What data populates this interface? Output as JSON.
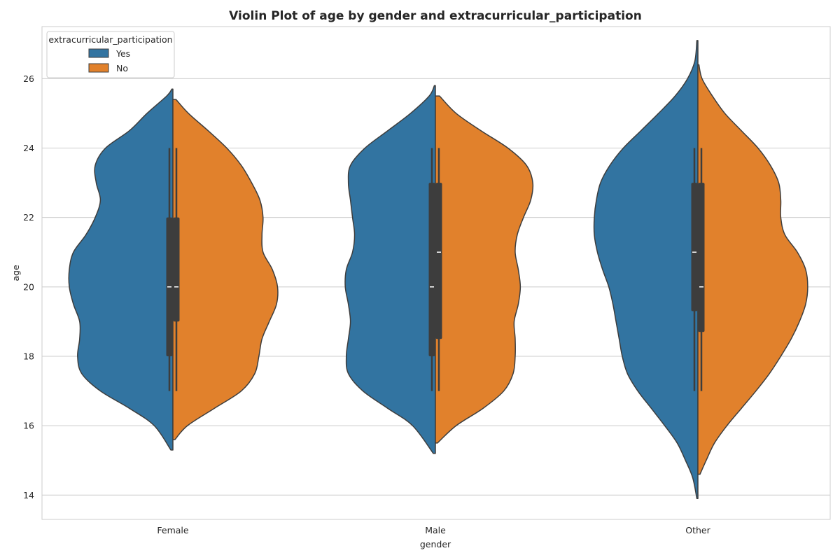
{
  "chart_data": {
    "type": "violin",
    "title": "Violin Plot of age by gender and extracurricular_participation",
    "xlabel": "gender",
    "ylabel": "age",
    "ylim": [
      13.3,
      27.5
    ],
    "yticks": [
      14,
      16,
      18,
      20,
      22,
      24,
      26
    ],
    "categories": [
      "Female",
      "Male",
      "Other"
    ],
    "grid": "horizontal",
    "split": true,
    "legend": {
      "title": "extracurricular_participation",
      "placement": "top-left",
      "entries": [
        {
          "label": "Yes",
          "color": "#3274a1"
        },
        {
          "label": "No",
          "color": "#e1812c"
        }
      ]
    },
    "series": [
      {
        "name": "Yes",
        "color": "#3274a1",
        "groups": [
          {
            "category": "Female",
            "min": 15.3,
            "max": 25.7,
            "whisker": [
              17,
              24
            ],
            "q1": 18,
            "median": 20,
            "q3": 22,
            "density": [
              [
                15.3,
                0.02
              ],
              [
                16.0,
                0.18
              ],
              [
                16.5,
                0.42
              ],
              [
                17.0,
                0.7
              ],
              [
                17.5,
                0.88
              ],
              [
                18.0,
                0.92
              ],
              [
                18.5,
                0.9
              ],
              [
                19.0,
                0.9
              ],
              [
                19.5,
                0.96
              ],
              [
                20.0,
                1.0
              ],
              [
                20.5,
                1.0
              ],
              [
                21.0,
                0.96
              ],
              [
                21.5,
                0.84
              ],
              [
                22.0,
                0.75
              ],
              [
                22.5,
                0.7
              ],
              [
                23.0,
                0.74
              ],
              [
                23.5,
                0.75
              ],
              [
                24.0,
                0.65
              ],
              [
                24.5,
                0.42
              ],
              [
                25.0,
                0.25
              ],
              [
                25.5,
                0.06
              ],
              [
                25.7,
                0.01
              ]
            ]
          },
          {
            "category": "Male",
            "min": 15.2,
            "max": 25.8,
            "whisker": [
              17,
              24
            ],
            "q1": 18,
            "median": 20,
            "q3": 23,
            "density": [
              [
                15.2,
                0.02
              ],
              [
                16.0,
                0.22
              ],
              [
                16.5,
                0.46
              ],
              [
                17.0,
                0.7
              ],
              [
                17.5,
                0.84
              ],
              [
                18.0,
                0.86
              ],
              [
                18.5,
                0.84
              ],
              [
                19.0,
                0.82
              ],
              [
                19.5,
                0.84
              ],
              [
                20.0,
                0.87
              ],
              [
                20.5,
                0.86
              ],
              [
                21.0,
                0.8
              ],
              [
                21.5,
                0.78
              ],
              [
                22.0,
                0.8
              ],
              [
                22.5,
                0.82
              ],
              [
                23.0,
                0.84
              ],
              [
                23.5,
                0.82
              ],
              [
                24.0,
                0.68
              ],
              [
                24.5,
                0.46
              ],
              [
                25.0,
                0.24
              ],
              [
                25.5,
                0.06
              ],
              [
                25.8,
                0.01
              ]
            ]
          },
          {
            "category": "Other",
            "min": 13.9,
            "max": 27.1,
            "whisker": [
              17,
              24
            ],
            "q1": 19.3,
            "median": 21,
            "q3": 23,
            "density": [
              [
                13.9,
                0.01
              ],
              [
                14.5,
                0.05
              ],
              [
                15.0,
                0.12
              ],
              [
                15.5,
                0.2
              ],
              [
                16.0,
                0.32
              ],
              [
                16.5,
                0.45
              ],
              [
                17.0,
                0.58
              ],
              [
                17.5,
                0.68
              ],
              [
                18.0,
                0.73
              ],
              [
                18.5,
                0.76
              ],
              [
                19.0,
                0.79
              ],
              [
                19.5,
                0.82
              ],
              [
                20.0,
                0.86
              ],
              [
                20.5,
                0.92
              ],
              [
                21.0,
                0.97
              ],
              [
                21.5,
                1.0
              ],
              [
                22.0,
                1.0
              ],
              [
                22.5,
                0.98
              ],
              [
                23.0,
                0.94
              ],
              [
                23.5,
                0.85
              ],
              [
                24.0,
                0.72
              ],
              [
                24.5,
                0.55
              ],
              [
                25.0,
                0.38
              ],
              [
                25.5,
                0.22
              ],
              [
                26.0,
                0.1
              ],
              [
                26.5,
                0.03
              ],
              [
                27.1,
                0.01
              ]
            ]
          }
        ]
      },
      {
        "name": "No",
        "color": "#e1812c",
        "groups": [
          {
            "category": "Female",
            "min": 15.6,
            "max": 25.4,
            "whisker": [
              17,
              24
            ],
            "q1": 19,
            "median": 20,
            "q3": 22,
            "density": [
              [
                15.6,
                0.02
              ],
              [
                16.0,
                0.14
              ],
              [
                16.5,
                0.4
              ],
              [
                17.0,
                0.66
              ],
              [
                17.5,
                0.79
              ],
              [
                18.0,
                0.83
              ],
              [
                18.5,
                0.86
              ],
              [
                19.0,
                0.93
              ],
              [
                19.5,
                1.0
              ],
              [
                20.0,
                1.01
              ],
              [
                20.5,
                0.96
              ],
              [
                21.0,
                0.87
              ],
              [
                21.5,
                0.86
              ],
              [
                22.0,
                0.87
              ],
              [
                22.5,
                0.84
              ],
              [
                23.0,
                0.76
              ],
              [
                23.5,
                0.66
              ],
              [
                24.0,
                0.52
              ],
              [
                24.5,
                0.34
              ],
              [
                25.0,
                0.15
              ],
              [
                25.4,
                0.03
              ]
            ]
          },
          {
            "category": "Male",
            "min": 15.5,
            "max": 25.5,
            "whisker": [
              17,
              24
            ],
            "q1": 18.5,
            "median": 21,
            "q3": 23,
            "density": [
              [
                15.5,
                0.02
              ],
              [
                16.0,
                0.2
              ],
              [
                16.5,
                0.46
              ],
              [
                17.0,
                0.66
              ],
              [
                17.5,
                0.75
              ],
              [
                18.0,
                0.77
              ],
              [
                18.5,
                0.77
              ],
              [
                19.0,
                0.76
              ],
              [
                19.5,
                0.8
              ],
              [
                20.0,
                0.82
              ],
              [
                20.5,
                0.8
              ],
              [
                21.0,
                0.77
              ],
              [
                21.5,
                0.79
              ],
              [
                22.0,
                0.85
              ],
              [
                22.5,
                0.92
              ],
              [
                23.0,
                0.94
              ],
              [
                23.5,
                0.88
              ],
              [
                24.0,
                0.7
              ],
              [
                24.5,
                0.44
              ],
              [
                25.0,
                0.2
              ],
              [
                25.5,
                0.04
              ]
            ]
          },
          {
            "category": "Other",
            "min": 14.6,
            "max": 26.4,
            "whisker": [
              17,
              24
            ],
            "q1": 18.7,
            "median": 20,
            "q3": 23,
            "density": [
              [
                14.6,
                0.02
              ],
              [
                15.0,
                0.08
              ],
              [
                15.5,
                0.16
              ],
              [
                16.0,
                0.28
              ],
              [
                16.5,
                0.42
              ],
              [
                17.0,
                0.56
              ],
              [
                17.5,
                0.69
              ],
              [
                18.0,
                0.8
              ],
              [
                18.5,
                0.9
              ],
              [
                19.0,
                0.98
              ],
              [
                19.5,
                1.04
              ],
              [
                20.0,
                1.06
              ],
              [
                20.5,
                1.04
              ],
              [
                21.0,
                0.96
              ],
              [
                21.5,
                0.84
              ],
              [
                22.0,
                0.8
              ],
              [
                22.5,
                0.8
              ],
              [
                23.0,
                0.78
              ],
              [
                23.5,
                0.7
              ],
              [
                24.0,
                0.58
              ],
              [
                24.5,
                0.42
              ],
              [
                25.0,
                0.26
              ],
              [
                25.5,
                0.14
              ],
              [
                26.0,
                0.04
              ],
              [
                26.4,
                0.01
              ]
            ]
          }
        ]
      }
    ]
  }
}
